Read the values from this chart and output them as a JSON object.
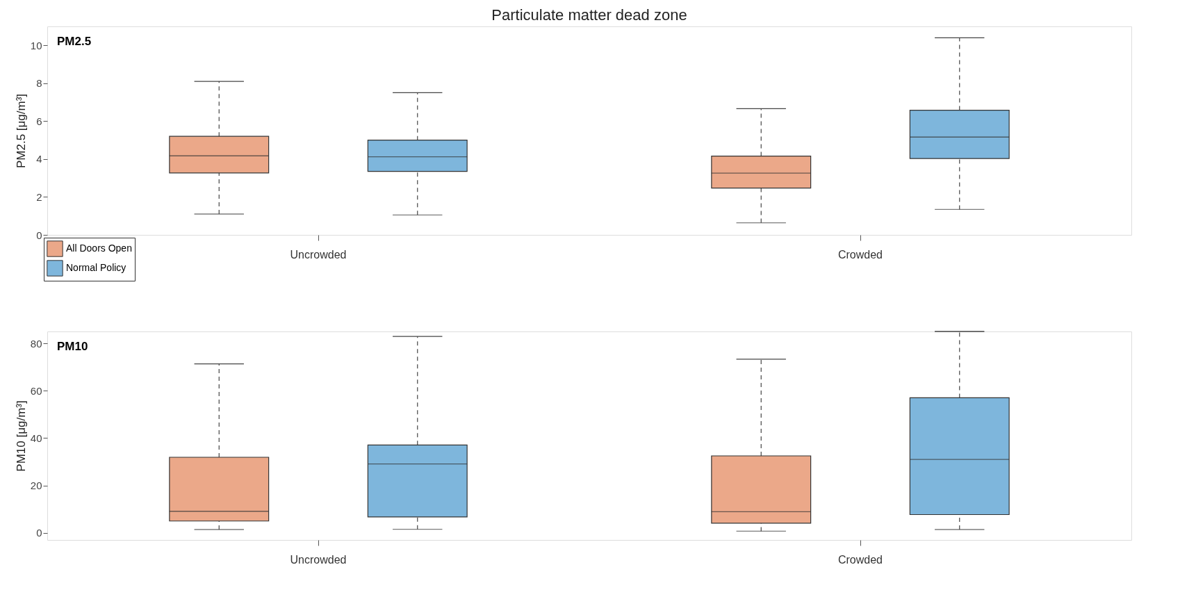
{
  "chart_data": [
    {
      "type": "box",
      "title": "Particulate matter dead zone",
      "ylabel": "PM2.5 [μg/m³]",
      "annotations": [
        "PM2.5"
      ],
      "categories": [
        "Uncrowded",
        "Crowded"
      ],
      "ylim": [
        0,
        11
      ],
      "yticks": [
        0,
        2,
        4,
        6,
        8,
        10
      ],
      "grid": false,
      "legend": "bottom left",
      "series": [
        {
          "name": "All Doors Open",
          "color": "#eba889",
          "boxes": [
            {
              "low": 1.1,
              "q1": 3.27,
              "median": 4.17,
              "q3": 5.2,
              "high": 8.1
            },
            {
              "low": 0.64,
              "q1": 2.47,
              "median": 3.26,
              "q3": 4.16,
              "high": 6.66
            }
          ]
        },
        {
          "name": "Normal Policy",
          "color": "#7eb6dc",
          "boxes": [
            {
              "low": 1.05,
              "q1": 3.35,
              "median": 4.12,
              "q3": 5.0,
              "high": 7.5
            },
            {
              "low": 1.34,
              "q1": 4.03,
              "median": 5.16,
              "q3": 6.58,
              "high": 10.4
            }
          ]
        }
      ]
    },
    {
      "type": "box",
      "ylabel": "PM10 [μg/m³]",
      "annotations": [
        "PM10"
      ],
      "categories": [
        "Uncrowded",
        "Crowded"
      ],
      "ylim": [
        -3,
        85
      ],
      "yticks": [
        0,
        20,
        40,
        60,
        80
      ],
      "grid": false,
      "legend": false,
      "series": [
        {
          "color": "#eba889",
          "boxes": [
            {
              "low": 1.4,
              "q1": 5.0,
              "median": 9.1,
              "q3": 31.9,
              "high": 71.3
            },
            {
              "low": 0.7,
              "q1": 4.1,
              "median": 8.9,
              "q3": 32.5,
              "high": 73.3
            }
          ]
        },
        {
          "color": "#7eb6dc",
          "boxes": [
            {
              "low": 1.5,
              "q1": 6.7,
              "median": 29.1,
              "q3": 37.1,
              "high": 82.9
            },
            {
              "low": 1.4,
              "q1": 7.7,
              "median": 31.0,
              "q3": 57.0,
              "high": 85
            }
          ]
        }
      ]
    }
  ]
}
